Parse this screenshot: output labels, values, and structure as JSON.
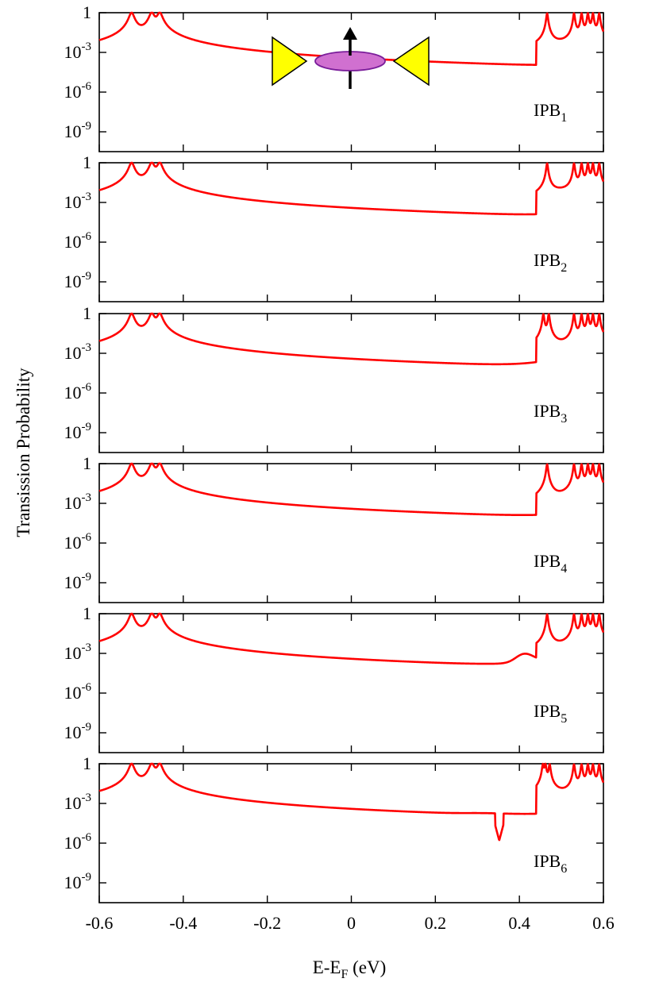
{
  "chart_data": {
    "type": "line",
    "xlabel": "E-E",
    "xlabel_sub": "F",
    "xlabel_unit": " (eV)",
    "ylabel": "Transission Probability",
    "xlim": [
      -0.6,
      0.6
    ],
    "ylim_log10": [
      -10.5,
      0
    ],
    "x_ticks": [
      -0.6,
      -0.4,
      -0.2,
      0,
      0.2,
      0.4,
      0.6
    ],
    "x_tick_labels": [
      "-0.6",
      "-0.4",
      "-0.2",
      "0",
      "0.2",
      "0.4",
      "0.6"
    ],
    "y_ticks": [
      {
        "value": 0,
        "base": "1",
        "exp": ""
      },
      {
        "value": -3,
        "base": "10",
        "exp": "-3"
      },
      {
        "value": -6,
        "base": "10",
        "exp": "-6"
      },
      {
        "value": -9,
        "base": "10",
        "exp": "-9"
      }
    ],
    "panels": [
      {
        "label": "IPB",
        "sub": "1",
        "inset": true,
        "baseline": {
          "e0": -0.22,
          "v0": -8.55,
          "aL": 4.6,
          "pL": 1.5,
          "aR": 7.2,
          "pR": 1.55
        },
        "features": [
          [
            0.05,
            -0.35,
            1.1
          ]
        ],
        "left_bump": {
          "x": -0.45,
          "w": 0.04,
          "h": 0
        },
        "peaks": [
          -0.523,
          -0.475,
          -0.456
        ],
        "right_peaks": [
          0.466,
          0.53,
          0.548,
          0.563,
          0.575,
          0.59
        ],
        "right_hump": {
          "x": 0.48,
          "v": -2.6,
          "w": 0.06
        }
      },
      {
        "label": "IPB",
        "sub": "2",
        "inset": false,
        "baseline": {
          "e0": -0.25,
          "v0": -8.3,
          "aL": 6.5,
          "pL": 1.7,
          "aR": 6.6,
          "pR": 1.6
        },
        "features": [],
        "left_bump": {
          "x": -0.45,
          "w": 0.04,
          "h": 0
        },
        "peaks": [
          -0.523,
          -0.475,
          -0.456
        ],
        "right_peaks": [
          0.466,
          0.53,
          0.548,
          0.563,
          0.575,
          0.59
        ],
        "right_hump": {
          "x": 0.49,
          "v": -2.3,
          "w": 0.05
        }
      },
      {
        "label": "IPB",
        "sub": "3",
        "inset": false,
        "baseline": {
          "e0": -0.18,
          "v0": -8.05,
          "aL": 15.0,
          "pL": 1.9,
          "aR": 7.8,
          "pR": 1.35
        },
        "features": [],
        "left_bump": {
          "x": -0.45,
          "w": 0.04,
          "h": 0
        },
        "peaks": [
          -0.523,
          -0.475,
          -0.456
        ],
        "right_peaks": [
          0.457,
          0.47,
          0.53,
          0.548,
          0.563,
          0.575,
          0.59
        ],
        "right_hump": {
          "x": 0.5,
          "v": -3.5,
          "w": 0.05
        }
      },
      {
        "label": "IPB",
        "sub": "4",
        "inset": false,
        "baseline": {
          "e0": -0.16,
          "v0": -7.5,
          "aL": 12.0,
          "pL": 1.9,
          "aR": 6.0,
          "pR": 1.4
        },
        "features": [],
        "left_bump": {
          "x": -0.45,
          "w": 0.04,
          "h": 0
        },
        "peaks": [
          -0.523,
          -0.475,
          -0.456
        ],
        "right_peaks": [
          0.466,
          0.53,
          0.548,
          0.563,
          0.575,
          0.59
        ],
        "right_hump": {
          "x": 0.5,
          "v": -3.4,
          "w": 0.05
        }
      },
      {
        "label": "IPB",
        "sub": "5",
        "inset": false,
        "baseline": {
          "e0": -0.26,
          "v0": -7.0,
          "aL": 9.5,
          "pL": 1.8,
          "aR": 5.2,
          "pR": 1.45
        },
        "features": [
          [
            0.41,
            1.0,
            0.035
          ]
        ],
        "left_bump": {
          "x": -0.45,
          "w": 0.04,
          "h": 0
        },
        "peaks": [
          -0.523,
          -0.475,
          -0.456
        ],
        "right_peaks": [
          0.466,
          0.53,
          0.548,
          0.563,
          0.575,
          0.59
        ],
        "right_hump": {
          "x": 0.5,
          "v": -3.2,
          "w": 0.05
        }
      },
      {
        "label": "IPB",
        "sub": "6",
        "inset": false,
        "baseline": {
          "e0": -0.18,
          "v0": -6.0,
          "aL": 14.0,
          "pL": 2.0,
          "aR": 3.6,
          "pR": 1.5
        },
        "features": [
          [
            0.3,
            0.4,
            0.08
          ]
        ],
        "left_bump": {
          "x": -0.45,
          "w": 0.04,
          "h": 0
        },
        "peaks": [
          -0.523,
          -0.475,
          -0.456
        ],
        "right_peaks": [
          0.456,
          0.462,
          0.472,
          0.53,
          0.548,
          0.563,
          0.575,
          0.59
        ],
        "right_hump": {
          "x": 0.5,
          "v": -2.8,
          "w": 0.05
        },
        "dip": {
          "x": 0.352,
          "v": -5.8
        }
      }
    ]
  },
  "colors": {
    "curve": "#ff0000",
    "lead": "#ffff00",
    "molecule": "#d070d0",
    "molecule_edge": "#7a1d9a"
  }
}
